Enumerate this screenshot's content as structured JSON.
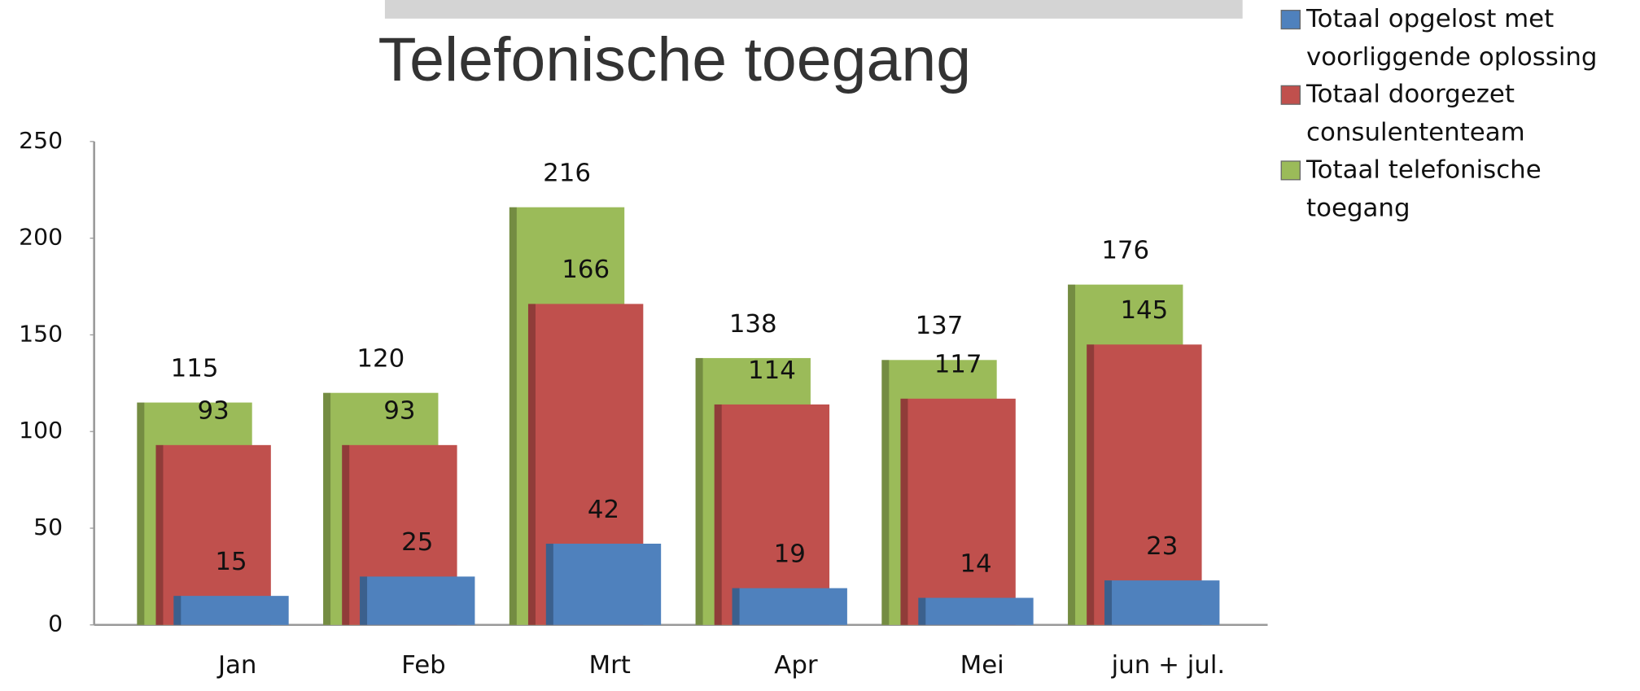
{
  "chart_data": {
    "type": "bar",
    "title": "Telefonische toegang",
    "categories": [
      "Jan",
      "Feb",
      "Mrt",
      "Apr",
      "Mei",
      "jun + jul."
    ],
    "series": [
      {
        "name": "Totaal opgelost met voorliggende oplossing",
        "color": "#4f81bd",
        "values": [
          15,
          25,
          42,
          19,
          14,
          23
        ]
      },
      {
        "name": "Totaal doorgezet consulententeam",
        "color": "#c0504d",
        "values": [
          93,
          93,
          166,
          114,
          117,
          145
        ]
      },
      {
        "name": "Totaal telefonische toegang",
        "color": "#9bbb59",
        "values": [
          115,
          120,
          216,
          138,
          137,
          176
        ]
      }
    ],
    "ylim": [
      0,
      250
    ],
    "yticks": [
      0,
      50,
      100,
      150,
      200,
      250
    ],
    "grid": false,
    "legend": "top-right"
  }
}
